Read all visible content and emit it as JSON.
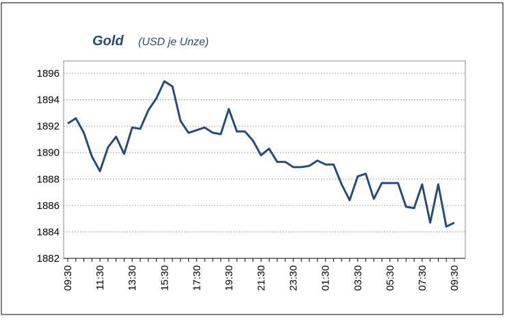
{
  "chart_data": {
    "type": "line",
    "title": "Gold",
    "subtitle": "(USD je Unze)",
    "categories": [
      "09:30",
      null,
      null,
      null,
      "11:30",
      null,
      null,
      null,
      "13:30",
      null,
      null,
      null,
      "15:30",
      null,
      null,
      null,
      "17:30",
      null,
      null,
      null,
      "19:30",
      null,
      null,
      null,
      "21:30",
      null,
      null,
      null,
      "23:30",
      null,
      null,
      null,
      "01:30",
      null,
      null,
      null,
      "03:30",
      null,
      null,
      null,
      "05:30",
      null,
      null,
      null,
      "07:30",
      null,
      null,
      null,
      "09:30"
    ],
    "series": [
      {
        "name": "Gold",
        "color": "#244a7e",
        "values": [
          1892.2,
          1892.6,
          1891.5,
          1889.7,
          1888.6,
          1890.4,
          1891.2,
          1889.9,
          1891.9,
          1891.8,
          1893.2,
          1894.1,
          1895.4,
          1895.0,
          1892.4,
          1891.5,
          1891.7,
          1891.9,
          1891.5,
          1891.4,
          1893.3,
          1891.6,
          1891.6,
          1890.9,
          1889.8,
          1890.3,
          1889.3,
          1889.3,
          1888.9,
          1888.9,
          1889.0,
          1889.4,
          1889.1,
          1889.1,
          1887.6,
          1886.4,
          1888.2,
          1888.4,
          1886.5,
          1887.7,
          1887.7,
          1887.7,
          1885.9,
          1885.8,
          1887.6,
          1884.7,
          1887.6,
          1884.4,
          1884.7
        ]
      }
    ],
    "ylim": [
      1882,
      1896
    ],
    "yticks": [
      1882,
      1884,
      1886,
      1888,
      1890,
      1892,
      1894,
      1896
    ],
    "grid": true
  }
}
